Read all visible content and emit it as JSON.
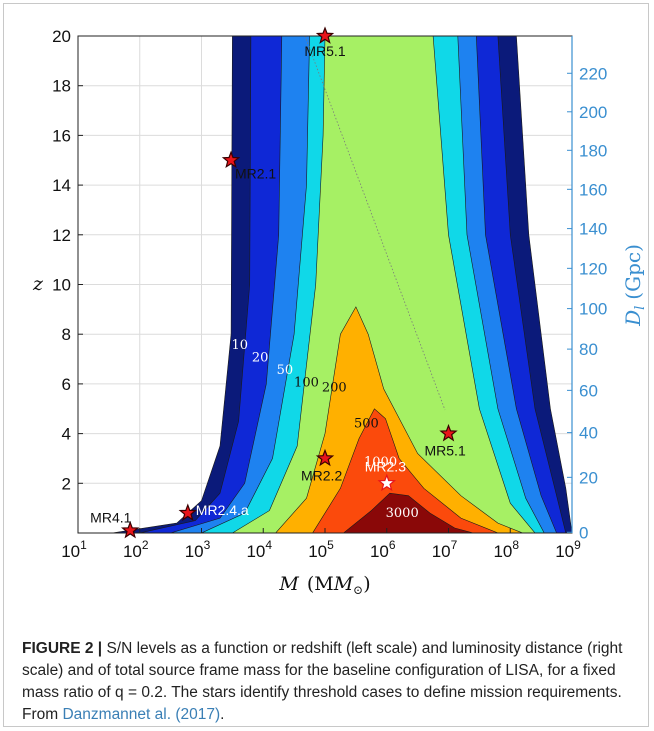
{
  "chart_data": {
    "type": "contour",
    "x_axis": {
      "label_var": "M",
      "label_unit": "(M",
      "label_sub": "⊙",
      "label_close": ")",
      "scale": "log",
      "range": [
        10,
        1000000000
      ],
      "ticks": [
        {
          "value": 10,
          "base": "10",
          "exp": "1"
        },
        {
          "value": 100,
          "base": "10",
          "exp": "2"
        },
        {
          "value": 1000,
          "base": "10",
          "exp": "3"
        },
        {
          "value": 10000,
          "base": "10",
          "exp": "4"
        },
        {
          "value": 100000,
          "base": "10",
          "exp": "5"
        },
        {
          "value": 1000000,
          "base": "10",
          "exp": "6"
        },
        {
          "value": 10000000,
          "base": "10",
          "exp": "7"
        },
        {
          "value": 100000000,
          "base": "10",
          "exp": "8"
        },
        {
          "value": 1000000000,
          "base": "10",
          "exp": "9"
        }
      ]
    },
    "y_axis_left": {
      "label": "z",
      "range": [
        0,
        20
      ],
      "ticks": [
        "2",
        "4",
        "6",
        "8",
        "10",
        "12",
        "14",
        "16",
        "18",
        "20"
      ]
    },
    "y_axis_right": {
      "label_var": "D",
      "label_sub": "l",
      "label_unit": "(Gpc)",
      "ticks": [
        {
          "label": "0",
          "z": 0.03
        },
        {
          "label": "20",
          "z": 2.24
        },
        {
          "label": "40",
          "z": 4.04
        },
        {
          "label": "60",
          "z": 5.74
        },
        {
          "label": "80",
          "z": 7.4
        },
        {
          "label": "100",
          "z": 9.03
        },
        {
          "label": "120",
          "z": 10.65
        },
        {
          "label": "140",
          "z": 12.25
        },
        {
          "label": "160",
          "z": 13.83
        },
        {
          "label": "180",
          "z": 15.4
        },
        {
          "label": "200",
          "z": 16.95
        },
        {
          "label": "220",
          "z": 18.5
        }
      ]
    },
    "grid": true,
    "contour_levels": [
      {
        "level": 10,
        "color": "#0b1a7a",
        "label": "10"
      },
      {
        "level": 20,
        "color": "#0f28d6",
        "label": "20"
      },
      {
        "level": 50,
        "color": "#1e82f0",
        "label": "50"
      },
      {
        "level": 100,
        "color": "#10d8e8",
        "label": "100"
      },
      {
        "level": 200,
        "color": "#a6f064",
        "label": "200"
      },
      {
        "level": 500,
        "color": "#ffb000",
        "label": "500"
      },
      {
        "level": 1000,
        "color": "#fb4a0c",
        "label": "1000"
      },
      {
        "level": 3000,
        "color": "#8a0808",
        "label": "3000"
      }
    ],
    "stars": [
      {
        "name": "MR5.1",
        "label": "MR5.1",
        "M": 100000,
        "z": 20,
        "filled": true
      },
      {
        "name": "MR2.1",
        "label": "MR2.1",
        "M": 3000,
        "z": 15,
        "filled": true
      },
      {
        "name": "MR2.2",
        "label": "MR2.2",
        "M": 100000,
        "z": 3,
        "filled": true
      },
      {
        "name": "MR2.3",
        "label": "MR2.3",
        "M": 1000000,
        "z": 2,
        "filled": false
      },
      {
        "name": "MR5.1-low",
        "label": "MR5.1",
        "M": 10000000,
        "z": 4,
        "filled": true
      },
      {
        "name": "MR4.1",
        "label": "MR4.1",
        "M": 70,
        "z": 0.1,
        "filled": true
      },
      {
        "name": "MR2.4.a",
        "label": "MR2.4.a",
        "M": 600,
        "z": 0.8,
        "filled": true
      }
    ]
  },
  "caption": {
    "figure_label": "FIGURE 2 |",
    "text": " S/N levels as a function or redshift (left scale) and luminosity distance (right scale) and of total source frame mass for the baseline configuration of LISA, for a fixed mass ratio of q = 0.2. The stars identify threshold cases to define mission requirements. From ",
    "reference": "Danzmannet al. (2017)",
    "end": "."
  }
}
